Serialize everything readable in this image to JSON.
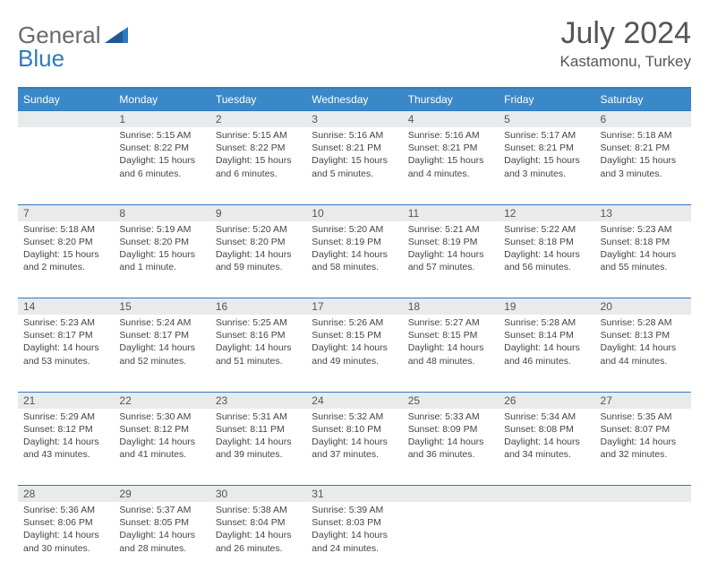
{
  "brand": {
    "word1": "General",
    "word2": "Blue",
    "logo_color": "#2f7bbf",
    "text_gray": "#6a6a6a"
  },
  "title": {
    "month": "July 2024",
    "location": "Kastamonu, Turkey"
  },
  "colors": {
    "header_bg": "#3a88c8",
    "rule": "#2f7bbf",
    "daynum_bg": "#e9eaec",
    "body_text": "#444444"
  },
  "weekdays": [
    "Sunday",
    "Monday",
    "Tuesday",
    "Wednesday",
    "Thursday",
    "Friday",
    "Saturday"
  ],
  "weeks": [
    {
      "nums": [
        "",
        "1",
        "2",
        "3",
        "4",
        "5",
        "6"
      ],
      "cells": [
        {
          "sunrise": "",
          "sunset": "",
          "daylight": ""
        },
        {
          "sunrise": "Sunrise: 5:15 AM",
          "sunset": "Sunset: 8:22 PM",
          "daylight": "Daylight: 15 hours and 6 minutes."
        },
        {
          "sunrise": "Sunrise: 5:15 AM",
          "sunset": "Sunset: 8:22 PM",
          "daylight": "Daylight: 15 hours and 6 minutes."
        },
        {
          "sunrise": "Sunrise: 5:16 AM",
          "sunset": "Sunset: 8:21 PM",
          "daylight": "Daylight: 15 hours and 5 minutes."
        },
        {
          "sunrise": "Sunrise: 5:16 AM",
          "sunset": "Sunset: 8:21 PM",
          "daylight": "Daylight: 15 hours and 4 minutes."
        },
        {
          "sunrise": "Sunrise: 5:17 AM",
          "sunset": "Sunset: 8:21 PM",
          "daylight": "Daylight: 15 hours and 3 minutes."
        },
        {
          "sunrise": "Sunrise: 5:18 AM",
          "sunset": "Sunset: 8:21 PM",
          "daylight": "Daylight: 15 hours and 3 minutes."
        }
      ]
    },
    {
      "nums": [
        "7",
        "8",
        "9",
        "10",
        "11",
        "12",
        "13"
      ],
      "cells": [
        {
          "sunrise": "Sunrise: 5:18 AM",
          "sunset": "Sunset: 8:20 PM",
          "daylight": "Daylight: 15 hours and 2 minutes."
        },
        {
          "sunrise": "Sunrise: 5:19 AM",
          "sunset": "Sunset: 8:20 PM",
          "daylight": "Daylight: 15 hours and 1 minute."
        },
        {
          "sunrise": "Sunrise: 5:20 AM",
          "sunset": "Sunset: 8:20 PM",
          "daylight": "Daylight: 14 hours and 59 minutes."
        },
        {
          "sunrise": "Sunrise: 5:20 AM",
          "sunset": "Sunset: 8:19 PM",
          "daylight": "Daylight: 14 hours and 58 minutes."
        },
        {
          "sunrise": "Sunrise: 5:21 AM",
          "sunset": "Sunset: 8:19 PM",
          "daylight": "Daylight: 14 hours and 57 minutes."
        },
        {
          "sunrise": "Sunrise: 5:22 AM",
          "sunset": "Sunset: 8:18 PM",
          "daylight": "Daylight: 14 hours and 56 minutes."
        },
        {
          "sunrise": "Sunrise: 5:23 AM",
          "sunset": "Sunset: 8:18 PM",
          "daylight": "Daylight: 14 hours and 55 minutes."
        }
      ]
    },
    {
      "nums": [
        "14",
        "15",
        "16",
        "17",
        "18",
        "19",
        "20"
      ],
      "cells": [
        {
          "sunrise": "Sunrise: 5:23 AM",
          "sunset": "Sunset: 8:17 PM",
          "daylight": "Daylight: 14 hours and 53 minutes."
        },
        {
          "sunrise": "Sunrise: 5:24 AM",
          "sunset": "Sunset: 8:17 PM",
          "daylight": "Daylight: 14 hours and 52 minutes."
        },
        {
          "sunrise": "Sunrise: 5:25 AM",
          "sunset": "Sunset: 8:16 PM",
          "daylight": "Daylight: 14 hours and 51 minutes."
        },
        {
          "sunrise": "Sunrise: 5:26 AM",
          "sunset": "Sunset: 8:15 PM",
          "daylight": "Daylight: 14 hours and 49 minutes."
        },
        {
          "sunrise": "Sunrise: 5:27 AM",
          "sunset": "Sunset: 8:15 PM",
          "daylight": "Daylight: 14 hours and 48 minutes."
        },
        {
          "sunrise": "Sunrise: 5:28 AM",
          "sunset": "Sunset: 8:14 PM",
          "daylight": "Daylight: 14 hours and 46 minutes."
        },
        {
          "sunrise": "Sunrise: 5:28 AM",
          "sunset": "Sunset: 8:13 PM",
          "daylight": "Daylight: 14 hours and 44 minutes."
        }
      ]
    },
    {
      "nums": [
        "21",
        "22",
        "23",
        "24",
        "25",
        "26",
        "27"
      ],
      "cells": [
        {
          "sunrise": "Sunrise: 5:29 AM",
          "sunset": "Sunset: 8:12 PM",
          "daylight": "Daylight: 14 hours and 43 minutes."
        },
        {
          "sunrise": "Sunrise: 5:30 AM",
          "sunset": "Sunset: 8:12 PM",
          "daylight": "Daylight: 14 hours and 41 minutes."
        },
        {
          "sunrise": "Sunrise: 5:31 AM",
          "sunset": "Sunset: 8:11 PM",
          "daylight": "Daylight: 14 hours and 39 minutes."
        },
        {
          "sunrise": "Sunrise: 5:32 AM",
          "sunset": "Sunset: 8:10 PM",
          "daylight": "Daylight: 14 hours and 37 minutes."
        },
        {
          "sunrise": "Sunrise: 5:33 AM",
          "sunset": "Sunset: 8:09 PM",
          "daylight": "Daylight: 14 hours and 36 minutes."
        },
        {
          "sunrise": "Sunrise: 5:34 AM",
          "sunset": "Sunset: 8:08 PM",
          "daylight": "Daylight: 14 hours and 34 minutes."
        },
        {
          "sunrise": "Sunrise: 5:35 AM",
          "sunset": "Sunset: 8:07 PM",
          "daylight": "Daylight: 14 hours and 32 minutes."
        }
      ]
    },
    {
      "nums": [
        "28",
        "29",
        "30",
        "31",
        "",
        "",
        ""
      ],
      "cells": [
        {
          "sunrise": "Sunrise: 5:36 AM",
          "sunset": "Sunset: 8:06 PM",
          "daylight": "Daylight: 14 hours and 30 minutes."
        },
        {
          "sunrise": "Sunrise: 5:37 AM",
          "sunset": "Sunset: 8:05 PM",
          "daylight": "Daylight: 14 hours and 28 minutes."
        },
        {
          "sunrise": "Sunrise: 5:38 AM",
          "sunset": "Sunset: 8:04 PM",
          "daylight": "Daylight: 14 hours and 26 minutes."
        },
        {
          "sunrise": "Sunrise: 5:39 AM",
          "sunset": "Sunset: 8:03 PM",
          "daylight": "Daylight: 14 hours and 24 minutes."
        },
        {
          "sunrise": "",
          "sunset": "",
          "daylight": ""
        },
        {
          "sunrise": "",
          "sunset": "",
          "daylight": ""
        },
        {
          "sunrise": "",
          "sunset": "",
          "daylight": ""
        }
      ]
    }
  ]
}
